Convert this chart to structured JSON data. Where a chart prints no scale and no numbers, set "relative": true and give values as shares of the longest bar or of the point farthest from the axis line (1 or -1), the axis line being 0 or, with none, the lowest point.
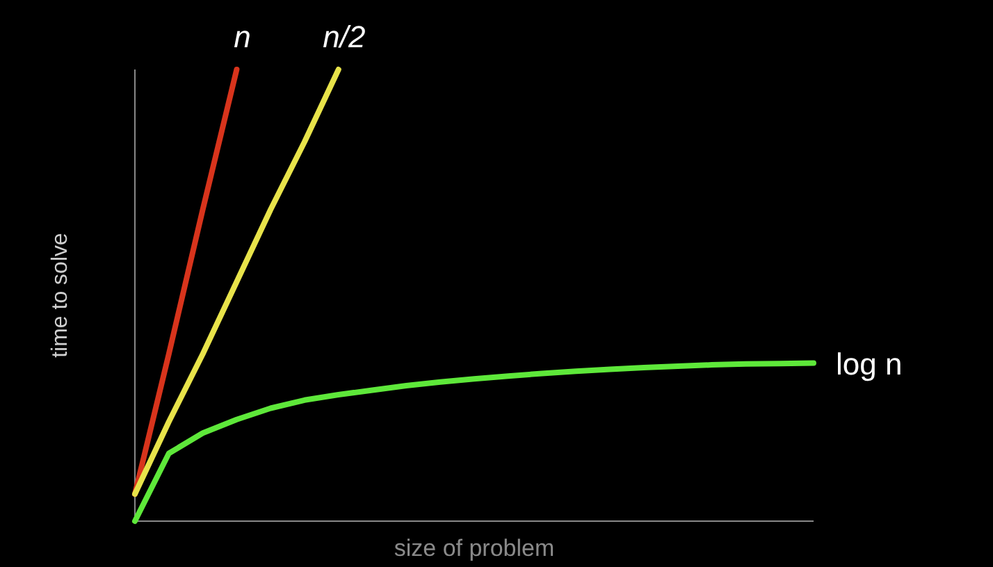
{
  "chart_data": {
    "type": "line",
    "relative": true,
    "xlabel": "size of problem",
    "ylabel": "time to solve",
    "categories": [
      null,
      null,
      null,
      null,
      null,
      null,
      null,
      null,
      null,
      null,
      null,
      null,
      null,
      null,
      null,
      null,
      null,
      null,
      null,
      null,
      null
    ],
    "series": [
      {
        "name": "n",
        "color": "#d8341c",
        "values": [
          0.06,
          0.37,
          0.69,
          1,
          null,
          null,
          null,
          null,
          null,
          null,
          null,
          null,
          null,
          null,
          null,
          null,
          null,
          null,
          null,
          null,
          null
        ]
      },
      {
        "name": "n/2",
        "color": "#e8e34a",
        "values": [
          0.06,
          0.22,
          0.37,
          0.53,
          0.69,
          0.84,
          1,
          null,
          null,
          null,
          null,
          null,
          null,
          null,
          null,
          null,
          null,
          null,
          null,
          null,
          null
        ]
      },
      {
        "name": "log n",
        "color": "#5ee83a",
        "values": [
          0,
          0.15,
          0.195,
          0.225,
          0.25,
          0.268,
          0.28,
          0.29,
          0.3,
          0.308,
          0.315,
          0.321,
          0.327,
          0.332,
          0.336,
          0.34,
          0.343,
          0.346,
          0.348,
          0.349,
          0.35
        ]
      }
    ]
  }
}
